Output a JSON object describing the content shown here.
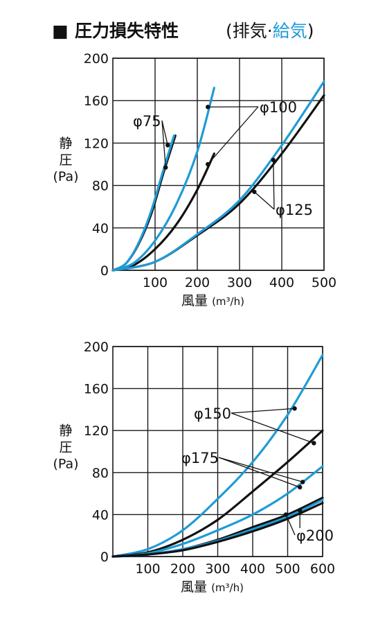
{
  "title": {
    "marker": "■",
    "main": "圧力損失特性",
    "subtitle_open": "(排気·",
    "subtitle_blue": "給気",
    "subtitle_close": ")"
  },
  "colors": {
    "exhaust": "#111111",
    "supply": "#1f9bd7",
    "grid": "#1a1a1a"
  },
  "chart_data": [
    {
      "type": "line",
      "xlabel": "風量",
      "xunit": "(m³/h)",
      "ylabel_lines": [
        "静",
        "圧",
        "(Pa)"
      ],
      "xlim": [
        0,
        500
      ],
      "ylim": [
        0,
        200
      ],
      "xticks": [
        100,
        200,
        300,
        400,
        500
      ],
      "yticks": [
        0,
        40,
        80,
        120,
        160,
        200
      ],
      "grid": true,
      "series": [
        {
          "name": "φ75",
          "mode": "exhaust",
          "x": [
            0,
            30,
            60,
            90,
            120,
            148
          ],
          "y": [
            0,
            6,
            24,
            52,
            92,
            127
          ]
        },
        {
          "name": "φ75",
          "mode": "supply",
          "x": [
            0,
            30,
            60,
            90,
            120,
            145
          ],
          "y": [
            0,
            6,
            25,
            55,
            95,
            127
          ]
        },
        {
          "name": "φ100",
          "mode": "exhaust",
          "x": [
            0,
            50,
            100,
            150,
            200,
            240
          ],
          "y": [
            0,
            5,
            20,
            43,
            76,
            110
          ]
        },
        {
          "name": "φ100",
          "mode": "supply",
          "x": [
            0,
            50,
            100,
            150,
            200,
            240
          ],
          "y": [
            0,
            7,
            28,
            62,
            112,
            172
          ]
        },
        {
          "name": "φ125",
          "mode": "exhaust",
          "x": [
            0,
            100,
            200,
            300,
            400,
            500
          ],
          "y": [
            0,
            8,
            33,
            63,
            110,
            165
          ]
        },
        {
          "name": "φ125",
          "mode": "supply",
          "x": [
            0,
            100,
            200,
            300,
            400,
            500
          ],
          "y": [
            0,
            8,
            34,
            66,
            118,
            178
          ]
        }
      ],
      "annotations": [
        {
          "text": "φ75",
          "points": [
            [
              130,
              118
            ],
            [
              125,
              97
            ]
          ]
        },
        {
          "text": "φ100",
          "points": [
            [
              225,
              154
            ],
            [
              225,
              100
            ]
          ]
        },
        {
          "text": "φ125",
          "points": [
            [
              380,
              104
            ],
            [
              335,
              74
            ]
          ]
        }
      ]
    },
    {
      "type": "line",
      "xlabel": "風量",
      "xunit": "(m³/h)",
      "ylabel_lines": [
        "静",
        "圧",
        "(Pa)"
      ],
      "xlim": [
        0,
        600
      ],
      "ylim": [
        0,
        200
      ],
      "xticks": [
        100,
        200,
        300,
        400,
        500,
        600
      ],
      "yticks": [
        0,
        40,
        80,
        120,
        160,
        200
      ],
      "grid": true,
      "series": [
        {
          "name": "φ150",
          "mode": "supply",
          "x": [
            0,
            100,
            200,
            300,
            400,
            500,
            600
          ],
          "y": [
            0,
            7,
            25,
            55,
            90,
            135,
            192
          ]
        },
        {
          "name": "φ150",
          "mode": "exhaust",
          "x": [
            0,
            100,
            200,
            300,
            400,
            500,
            600
          ],
          "y": [
            0,
            4,
            16,
            35,
            62,
            90,
            120
          ]
        },
        {
          "name": "φ175",
          "mode": "supply",
          "x": [
            0,
            100,
            200,
            300,
            400,
            500,
            600
          ],
          "y": [
            0,
            3,
            12,
            25,
            40,
            60,
            86
          ]
        },
        {
          "name": "φ175",
          "mode": "exhaust",
          "x": [
            0,
            100,
            200,
            300,
            400,
            500,
            600
          ],
          "y": [
            0,
            2,
            7,
            16,
            28,
            40,
            56
          ]
        },
        {
          "name": "φ200",
          "mode": "supply",
          "x": [
            0,
            100,
            200,
            300,
            400,
            500,
            600
          ],
          "y": [
            0,
            2,
            7,
            15,
            26,
            38,
            54
          ]
        },
        {
          "name": "φ200",
          "mode": "exhaust",
          "x": [
            0,
            100,
            200,
            300,
            400,
            500,
            600
          ],
          "y": [
            0,
            2,
            6,
            14,
            24,
            36,
            51
          ]
        }
      ],
      "annotations": [
        {
          "text": "φ150",
          "points": [
            [
              520,
              141
            ],
            [
              575,
              108
            ]
          ]
        },
        {
          "text": "φ175",
          "points": [
            [
              543,
              71
            ],
            [
              535,
              66
            ]
          ]
        },
        {
          "text": "φ200",
          "points": [
            [
              535,
              44
            ],
            [
              495,
              40
            ]
          ]
        }
      ]
    }
  ]
}
